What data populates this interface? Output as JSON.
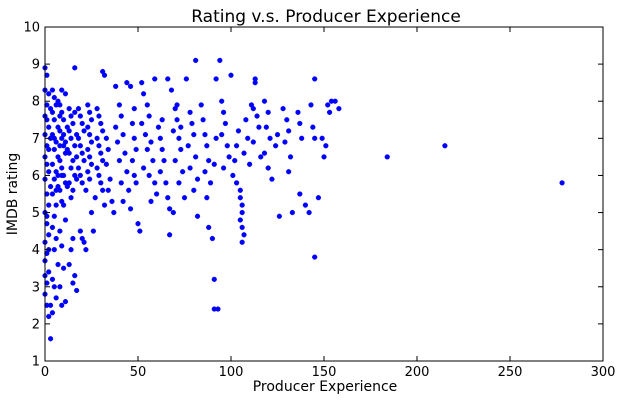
{
  "chart_data": {
    "type": "scatter",
    "title": "Rating v.s. Producer Experience",
    "xlabel": "Producer Experience",
    "ylabel": "IMDB rating",
    "xlim": [
      0,
      300
    ],
    "ylim": [
      1,
      10
    ],
    "xticks": [
      0,
      50,
      100,
      150,
      200,
      250,
      300
    ],
    "yticks": [
      1,
      2,
      3,
      4,
      5,
      6,
      7,
      8,
      9,
      10
    ],
    "grid": false,
    "legend": "none",
    "series": [
      {
        "color": "#0000ff",
        "points": [
          [
            0,
            8.9
          ],
          [
            1,
            8.7
          ],
          [
            0,
            8.3
          ],
          [
            2,
            8.2
          ],
          [
            1,
            7.9
          ],
          [
            3,
            7.8
          ],
          [
            0,
            7.6
          ],
          [
            1,
            7.5
          ],
          [
            2,
            7.3
          ],
          [
            0,
            7.1
          ],
          [
            3,
            7.0
          ],
          [
            1,
            6.8
          ],
          [
            2,
            6.7
          ],
          [
            0,
            6.5
          ],
          [
            1,
            6.3
          ],
          [
            2,
            6.1
          ],
          [
            0,
            5.9
          ],
          [
            3,
            5.7
          ],
          [
            1,
            5.5
          ],
          [
            2,
            5.2
          ],
          [
            0,
            5.0
          ],
          [
            1,
            4.7
          ],
          [
            2,
            4.4
          ],
          [
            0,
            4.2
          ],
          [
            1,
            3.9
          ],
          [
            0,
            3.7
          ],
          [
            2,
            3.4
          ],
          [
            1,
            3.1
          ],
          [
            0,
            2.8
          ],
          [
            3,
            2.5
          ],
          [
            2,
            2.2
          ],
          [
            3,
            1.6
          ],
          [
            1,
            2.5
          ],
          [
            0,
            3.3
          ],
          [
            2,
            4.0
          ],
          [
            1,
            4.9
          ],
          [
            4,
            8.3
          ],
          [
            5,
            8.1
          ],
          [
            6,
            7.9
          ],
          [
            4,
            7.7
          ],
          [
            5,
            7.5
          ],
          [
            7,
            7.3
          ],
          [
            4,
            7.1
          ],
          [
            6,
            6.9
          ],
          [
            5,
            6.7
          ],
          [
            7,
            6.5
          ],
          [
            4,
            6.3
          ],
          [
            6,
            6.1
          ],
          [
            5,
            5.9
          ],
          [
            7,
            5.7
          ],
          [
            4,
            5.5
          ],
          [
            6,
            5.2
          ],
          [
            5,
            4.9
          ],
          [
            4,
            4.6
          ],
          [
            6,
            4.3
          ],
          [
            5,
            4.0
          ],
          [
            7,
            3.6
          ],
          [
            4,
            3.2
          ],
          [
            6,
            2.7
          ],
          [
            5,
            3.0
          ],
          [
            4,
            2.3
          ],
          [
            6,
            5.6
          ],
          [
            7,
            6.0
          ],
          [
            5,
            7.0
          ],
          [
            8,
            7.6
          ],
          [
            7,
            8.0
          ],
          [
            8,
            7.9
          ],
          [
            9,
            7.7
          ],
          [
            10,
            7.5
          ],
          [
            8,
            7.2
          ],
          [
            9,
            7.0
          ],
          [
            10,
            6.8
          ],
          [
            11,
            6.6
          ],
          [
            8,
            6.4
          ],
          [
            9,
            6.2
          ],
          [
            10,
            6.0
          ],
          [
            11,
            5.8
          ],
          [
            8,
            5.6
          ],
          [
            9,
            5.3
          ],
          [
            10,
            5.2
          ],
          [
            11,
            4.8
          ],
          [
            8,
            4.5
          ],
          [
            9,
            4.1
          ],
          [
            10,
            3.5
          ],
          [
            8,
            3.0
          ],
          [
            11,
            2.6
          ],
          [
            9,
            2.5
          ],
          [
            12,
            6.7
          ],
          [
            12,
            7.3
          ],
          [
            12,
            5.7
          ],
          [
            9,
            8.3
          ],
          [
            11,
            8.2
          ],
          [
            10,
            7.1
          ],
          [
            11,
            6.9
          ],
          [
            8,
            6.8
          ],
          [
            9,
            6.0
          ],
          [
            13,
            7.8
          ],
          [
            14,
            7.6
          ],
          [
            15,
            7.4
          ],
          [
            13,
            7.2
          ],
          [
            14,
            7.0
          ],
          [
            16,
            6.8
          ],
          [
            13,
            6.6
          ],
          [
            15,
            6.4
          ],
          [
            14,
            6.2
          ],
          [
            16,
            6.0
          ],
          [
            13,
            5.8
          ],
          [
            15,
            5.6
          ],
          [
            14,
            5.4
          ],
          [
            16,
            8.9
          ],
          [
            15,
            4.3
          ],
          [
            14,
            4.0
          ],
          [
            13,
            3.6
          ],
          [
            16,
            3.3
          ],
          [
            15,
            3.1
          ],
          [
            17,
            2.9
          ],
          [
            16,
            7.7
          ],
          [
            17,
            7.1
          ],
          [
            17,
            6.5
          ],
          [
            17,
            5.9
          ],
          [
            18,
            7.8
          ],
          [
            19,
            7.6
          ],
          [
            20,
            7.4
          ],
          [
            21,
            7.2
          ],
          [
            18,
            7.0
          ],
          [
            19,
            6.8
          ],
          [
            20,
            6.6
          ],
          [
            21,
            6.4
          ],
          [
            18,
            6.2
          ],
          [
            19,
            6.0
          ],
          [
            20,
            5.8
          ],
          [
            22,
            5.6
          ],
          [
            21,
            4.2
          ],
          [
            20,
            4.3
          ],
          [
            19,
            4.5
          ],
          [
            22,
            4.0
          ],
          [
            23,
            7.9
          ],
          [
            24,
            7.7
          ],
          [
            25,
            7.5
          ],
          [
            23,
            7.3
          ],
          [
            24,
            7.1
          ],
          [
            25,
            6.9
          ],
          [
            23,
            6.7
          ],
          [
            24,
            6.5
          ],
          [
            25,
            6.3
          ],
          [
            23,
            6.1
          ],
          [
            24,
            5.9
          ],
          [
            25,
            5.0
          ],
          [
            26,
            4.5
          ],
          [
            27,
            5.4
          ],
          [
            28,
            7.8
          ],
          [
            29,
            7.6
          ],
          [
            30,
            7.4
          ],
          [
            31,
            7.2
          ],
          [
            28,
            7.0
          ],
          [
            29,
            6.8
          ],
          [
            30,
            6.6
          ],
          [
            31,
            6.4
          ],
          [
            28,
            6.2
          ],
          [
            29,
            6.0
          ],
          [
            30,
            5.8
          ],
          [
            31,
            5.6
          ],
          [
            32,
            5.2
          ],
          [
            31,
            8.8
          ],
          [
            32,
            8.7
          ],
          [
            33,
            7.0
          ],
          [
            34,
            6.7
          ],
          [
            33,
            6.3
          ],
          [
            35,
            5.9
          ],
          [
            34,
            5.6
          ],
          [
            36,
            5.3
          ],
          [
            37,
            5.0
          ],
          [
            38,
            8.4
          ],
          [
            40,
            7.9
          ],
          [
            41,
            7.6
          ],
          [
            38,
            7.3
          ],
          [
            42,
            7.1
          ],
          [
            39,
            6.9
          ],
          [
            43,
            6.6
          ],
          [
            40,
            6.4
          ],
          [
            44,
            6.1
          ],
          [
            41,
            5.8
          ],
          [
            45,
            5.6
          ],
          [
            42,
            5.3
          ],
          [
            46,
            5.1
          ],
          [
            44,
            8.5
          ],
          [
            46,
            8.4
          ],
          [
            47,
            7.4
          ],
          [
            48,
            7.0
          ],
          [
            49,
            6.7
          ],
          [
            47,
            6.4
          ],
          [
            48,
            6.0
          ],
          [
            49,
            5.8
          ],
          [
            50,
            4.7
          ],
          [
            51,
            4.5
          ],
          [
            48,
            7.8
          ],
          [
            52,
            8.5
          ],
          [
            53,
            8.2
          ],
          [
            55,
            7.9
          ],
          [
            56,
            7.6
          ],
          [
            52,
            7.4
          ],
          [
            54,
            7.1
          ],
          [
            57,
            6.9
          ],
          [
            55,
            6.7
          ],
          [
            58,
            6.4
          ],
          [
            53,
            6.2
          ],
          [
            56,
            6.0
          ],
          [
            59,
            5.8
          ],
          [
            60,
            5.5
          ],
          [
            57,
            5.3
          ],
          [
            59,
            8.6
          ],
          [
            61,
            7.3
          ],
          [
            62,
            7.0
          ],
          [
            63,
            6.7
          ],
          [
            64,
            6.4
          ],
          [
            62,
            6.1
          ],
          [
            65,
            5.8
          ],
          [
            66,
            5.4
          ],
          [
            67,
            5.1
          ],
          [
            63,
            7.5
          ],
          [
            66,
            8.6
          ],
          [
            68,
            8.3
          ],
          [
            70,
            7.8
          ],
          [
            71,
            7.5
          ],
          [
            69,
            7.2
          ],
          [
            72,
            7.0
          ],
          [
            73,
            6.7
          ],
          [
            70,
            6.4
          ],
          [
            74,
            6.1
          ],
          [
            72,
            5.8
          ],
          [
            75,
            5.4
          ],
          [
            67,
            4.4
          ],
          [
            69,
            5.0
          ],
          [
            71,
            7.9
          ],
          [
            73,
            7.3
          ],
          [
            76,
            8.6
          ],
          [
            78,
            7.7
          ],
          [
            79,
            7.4
          ],
          [
            80,
            7.1
          ],
          [
            77,
            6.8
          ],
          [
            81,
            6.5
          ],
          [
            78,
            6.2
          ],
          [
            82,
            5.9
          ],
          [
            80,
            5.6
          ],
          [
            81,
            9.1
          ],
          [
            82,
            4.9
          ],
          [
            84,
            7.9
          ],
          [
            85,
            7.5
          ],
          [
            86,
            7.1
          ],
          [
            87,
            6.8
          ],
          [
            88,
            6.4
          ],
          [
            86,
            6.1
          ],
          [
            89,
            5.8
          ],
          [
            87,
            5.4
          ],
          [
            88,
            4.6
          ],
          [
            90,
            4.3
          ],
          [
            91,
            6.3
          ],
          [
            92,
            7.0
          ],
          [
            91,
            3.2
          ],
          [
            91,
            2.4
          ],
          [
            93,
            2.4
          ],
          [
            92,
            8.6
          ],
          [
            94,
            9.1
          ],
          [
            95,
            8.0
          ],
          [
            96,
            7.7
          ],
          [
            97,
            7.4
          ],
          [
            95,
            7.1
          ],
          [
            98,
            6.8
          ],
          [
            99,
            6.5
          ],
          [
            96,
            6.2
          ],
          [
            100,
            8.7
          ],
          [
            101,
            6.0
          ],
          [
            102,
            6.4
          ],
          [
            103,
            6.8
          ],
          [
            104,
            7.2
          ],
          [
            103,
            5.8
          ],
          [
            105,
            5.6
          ],
          [
            105,
            5.4
          ],
          [
            106,
            5.2
          ],
          [
            106,
            5.0
          ],
          [
            105,
            4.8
          ],
          [
            106,
            4.6
          ],
          [
            107,
            4.4
          ],
          [
            106,
            4.2
          ],
          [
            108,
            7.5
          ],
          [
            109,
            7.0
          ],
          [
            107,
            6.6
          ],
          [
            110,
            6.3
          ],
          [
            111,
            7.9
          ],
          [
            112,
            7.8
          ],
          [
            113,
            8.6
          ],
          [
            113,
            8.5
          ],
          [
            114,
            7.6
          ],
          [
            115,
            7.3
          ],
          [
            112,
            6.9
          ],
          [
            116,
            6.5
          ],
          [
            118,
            8.0
          ],
          [
            120,
            7.7
          ],
          [
            119,
            7.3
          ],
          [
            121,
            7.0
          ],
          [
            118,
            6.6
          ],
          [
            120,
            6.2
          ],
          [
            122,
            5.9
          ],
          [
            124,
            6.8
          ],
          [
            125,
            7.1
          ],
          [
            126,
            4.9
          ],
          [
            128,
            7.8
          ],
          [
            130,
            7.5
          ],
          [
            131,
            7.2
          ],
          [
            129,
            6.9
          ],
          [
            132,
            6.5
          ],
          [
            131,
            6.1
          ],
          [
            133,
            5.0
          ],
          [
            136,
            7.7
          ],
          [
            137,
            7.4
          ],
          [
            138,
            7.0
          ],
          [
            137,
            5.5
          ],
          [
            140,
            5.2
          ],
          [
            142,
            5.0
          ],
          [
            143,
            7.9
          ],
          [
            144,
            7.3
          ],
          [
            145,
            7.0
          ],
          [
            145,
            8.6
          ],
          [
            145,
            3.8
          ],
          [
            147,
            5.4
          ],
          [
            149,
            7.0
          ],
          [
            150,
            6.5
          ],
          [
            151,
            6.8
          ],
          [
            152,
            7.9
          ],
          [
            153,
            7.7
          ],
          [
            154,
            8.0
          ],
          [
            156,
            8.0
          ],
          [
            158,
            7.8
          ],
          [
            184,
            6.5
          ],
          [
            215,
            6.8
          ],
          [
            278,
            5.8
          ]
        ]
      }
    ]
  }
}
